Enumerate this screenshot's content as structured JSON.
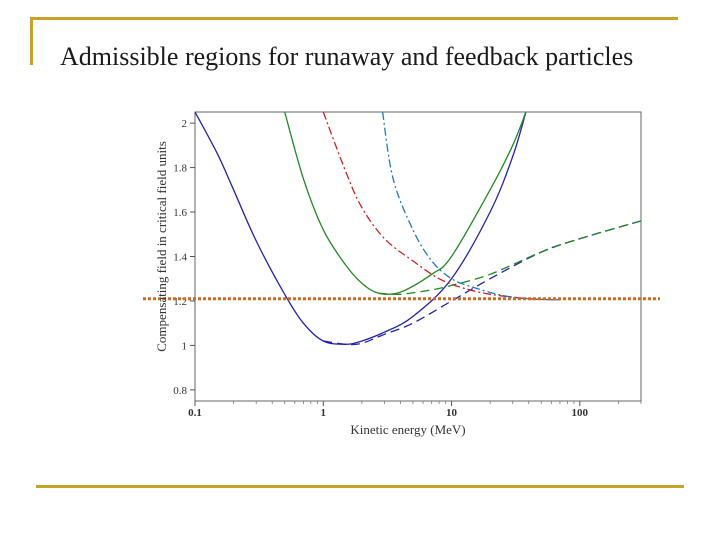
{
  "slide": {
    "title": "Admissible regions for runaway and feedback particles",
    "accent_color": "#c9a227"
  },
  "chart_data": {
    "type": "line",
    "title": "",
    "xlabel": "Kinetic energy (MeV)",
    "ylabel": "Compensating field in critical field units",
    "x_scale": "log",
    "xlim": [
      0.1,
      300
    ],
    "ylim": [
      0.75,
      2.05
    ],
    "x_ticks": [
      0.1,
      1,
      10,
      100
    ],
    "x_tick_labels": [
      "0.1",
      "1",
      "10",
      "100"
    ],
    "y_ticks": [
      0.8,
      1,
      1.2,
      1.4,
      1.6,
      1.8,
      2
    ],
    "y_tick_labels": [
      "0.8",
      "1",
      "1.2",
      "1.4",
      "1.6",
      "1.8",
      "2"
    ],
    "grid": false,
    "series": [
      {
        "color": "#2222aa",
        "dash": "solid",
        "x": [
          0.1,
          0.15,
          0.2,
          0.3,
          0.5,
          0.7,
          1.0,
          1.5,
          2,
          3,
          5,
          10,
          20,
          30,
          38
        ],
        "y": [
          2.05,
          1.86,
          1.7,
          1.47,
          1.23,
          1.1,
          1.02,
          1.005,
          1.02,
          1.06,
          1.13,
          1.3,
          1.6,
          1.85,
          2.05
        ]
      },
      {
        "color": "#2222aa",
        "dash": "dashed",
        "x": [
          1.0,
          1.5,
          2,
          3,
          5,
          10,
          20,
          50,
          100,
          300
        ],
        "y": [
          1.02,
          1.005,
          1.01,
          1.05,
          1.1,
          1.2,
          1.3,
          1.42,
          1.48,
          1.56
        ]
      },
      {
        "color": "#228822",
        "dash": "solid",
        "x": [
          0.5,
          0.7,
          1.0,
          1.5,
          2,
          2.7,
          4,
          7,
          10,
          20,
          30,
          38
        ],
        "y": [
          2.05,
          1.75,
          1.52,
          1.36,
          1.28,
          1.235,
          1.24,
          1.32,
          1.4,
          1.7,
          1.9,
          2.05
        ]
      },
      {
        "color": "#228822",
        "dash": "dashed",
        "x": [
          2.7,
          4,
          7,
          10,
          20,
          50,
          100,
          300
        ],
        "y": [
          1.235,
          1.23,
          1.25,
          1.27,
          1.32,
          1.42,
          1.48,
          1.56
        ]
      },
      {
        "color": "#cc2222",
        "dash": "dashdot",
        "x": [
          1.0,
          1.5,
          2,
          3,
          5,
          8,
          12,
          20,
          40,
          70
        ],
        "y": [
          2.05,
          1.78,
          1.62,
          1.48,
          1.38,
          1.3,
          1.26,
          1.23,
          1.21,
          1.205
        ]
      },
      {
        "color": "#2277bb",
        "dash": "dashdot",
        "x": [
          2.9,
          3.5,
          5,
          7,
          10,
          15,
          25,
          40,
          70
        ],
        "y": [
          2.05,
          1.75,
          1.52,
          1.38,
          1.3,
          1.26,
          1.225,
          1.21,
          1.205
        ]
      }
    ],
    "reference_line": {
      "y": 1.21,
      "color": "#d2691e"
    }
  }
}
